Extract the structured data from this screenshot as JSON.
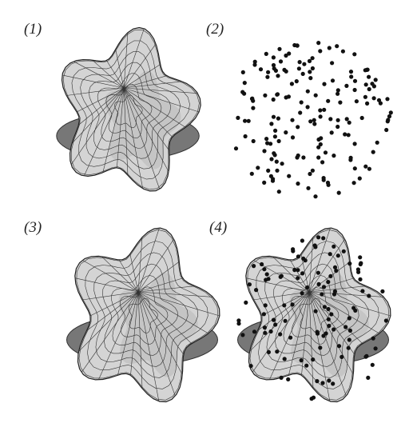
{
  "panels": [
    {
      "label": "(1)"
    },
    {
      "label": "(2)"
    },
    {
      "label": "(3)"
    },
    {
      "label": "(4)"
    }
  ]
}
